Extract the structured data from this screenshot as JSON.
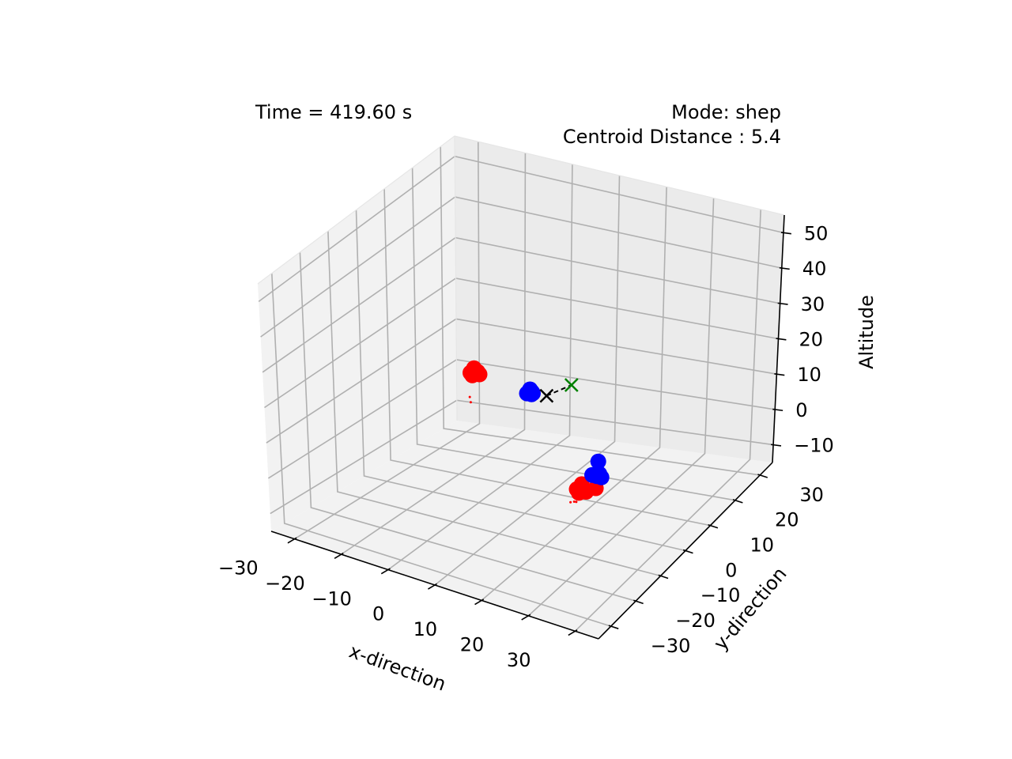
{
  "chart_data": {
    "type": "scatter3d",
    "annotations": {
      "time": "Time = 419.60 s",
      "mode": "Mode: shep",
      "centroid": "Centroid Distance : 5.4"
    },
    "xlabel": "x-direction",
    "ylabel": "y-direction",
    "zlabel": "Altitude",
    "xlim": [
      -35,
      35
    ],
    "ylim": [
      -35,
      35
    ],
    "zlim": [
      -15,
      55
    ],
    "xticks": [
      {
        "value": -30,
        "label": "−30"
      },
      {
        "value": -20,
        "label": "−20"
      },
      {
        "value": -10,
        "label": "−10"
      },
      {
        "value": 0,
        "label": "0"
      },
      {
        "value": 10,
        "label": "10"
      },
      {
        "value": 20,
        "label": "20"
      },
      {
        "value": 30,
        "label": "30"
      }
    ],
    "yticks": [
      {
        "value": -30,
        "label": "−30"
      },
      {
        "value": -20,
        "label": "−20"
      },
      {
        "value": -10,
        "label": "−10"
      },
      {
        "value": 0,
        "label": "0"
      },
      {
        "value": 10,
        "label": "10"
      },
      {
        "value": 20,
        "label": "20"
      },
      {
        "value": 30,
        "label": "30"
      }
    ],
    "zticks": [
      {
        "value": -10,
        "label": "−10"
      },
      {
        "value": 0,
        "label": "0"
      },
      {
        "value": 10,
        "label": "10"
      },
      {
        "value": 20,
        "label": "20"
      },
      {
        "value": 30,
        "label": "30"
      },
      {
        "value": 40,
        "label": "40"
      },
      {
        "value": 50,
        "label": "50"
      }
    ],
    "grid": true,
    "series": [
      {
        "color": "#ff0000",
        "marker": "circle",
        "points": [
          [
            -29,
            30,
            0
          ],
          [
            -28,
            29,
            0
          ],
          [
            -27,
            30,
            0
          ],
          [
            -28,
            31,
            0
          ],
          [
            -28.5,
            30.5,
            1
          ],
          [
            14,
            -5,
            0
          ],
          [
            15,
            -6,
            0
          ],
          [
            16,
            -5,
            0
          ],
          [
            17,
            -3,
            0
          ],
          [
            14.5,
            -4,
            1
          ],
          [
            15.5,
            -4.5,
            0
          ]
        ]
      },
      {
        "color": "#0000ff",
        "marker": "circle",
        "points": [
          [
            -14,
            26,
            0
          ],
          [
            -13.5,
            26.5,
            0
          ],
          [
            -13,
            26,
            0
          ],
          [
            -14,
            25.5,
            0
          ],
          [
            -13.5,
            25.8,
            1
          ],
          [
            -13,
            25.5,
            0
          ],
          [
            14,
            1,
            0
          ],
          [
            15,
            1,
            0
          ],
          [
            16,
            1,
            0
          ],
          [
            15,
            2,
            0
          ],
          [
            15,
            1.5,
            4
          ]
        ]
      },
      {
        "color": "#ff0000",
        "marker": "dot",
        "points": [
          [
            -28,
            28,
            -5
          ],
          [
            -27.5,
            27.5,
            -6
          ],
          [
            14,
            -6,
            -3
          ],
          [
            15,
            -7,
            -2
          ],
          [
            13.5,
            -6.5,
            -3
          ]
        ]
      },
      {
        "color": "#000000",
        "marker": "x",
        "points": [
          [
            -10,
            26,
            0
          ]
        ]
      },
      {
        "color": "#008000",
        "marker": "x",
        "points": [
          [
            -8,
            32,
            0
          ]
        ]
      }
    ],
    "lines": [
      {
        "color": "#000000",
        "dash": true,
        "points": [
          [
            -10,
            26,
            0
          ],
          [
            -8,
            32,
            0
          ]
        ]
      }
    ]
  }
}
